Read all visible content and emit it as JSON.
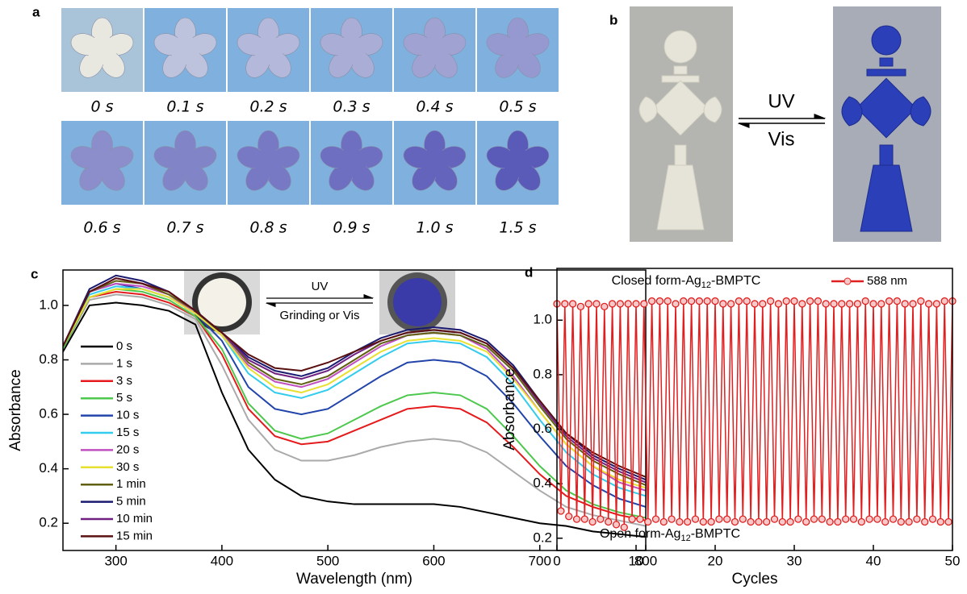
{
  "panels": {
    "a": {
      "label": "a",
      "times": [
        "0 s",
        "0.1 s",
        "0.2 s",
        "0.3 s",
        "0.4 s",
        "0.5 s",
        "0.6 s",
        "0.7 s",
        "0.8 s",
        "0.9 s",
        "1.0 s",
        "1.5 s"
      ]
    },
    "b": {
      "label": "b",
      "forward": "UV",
      "reverse": "Vis"
    }
  },
  "chart_data": [
    {
      "type": "line",
      "label": "c",
      "x_label": "Wavelength (nm)",
      "y_label": "Absorbance",
      "inset": {
        "forward": "UV",
        "reverse": "Grinding or Vis"
      },
      "x": [
        250,
        275,
        300,
        325,
        350,
        375,
        400,
        425,
        450,
        475,
        500,
        525,
        550,
        575,
        600,
        625,
        650,
        675,
        700,
        725,
        750,
        775,
        800
      ],
      "xlim": [
        250,
        800
      ],
      "xticks": [
        300,
        400,
        500,
        600,
        700,
        800
      ],
      "ylim": [
        0.1,
        1.13
      ],
      "yticks": [
        0.2,
        0.4,
        0.6,
        0.8,
        {
          "value": 1.0,
          "label": "1.0"
        }
      ],
      "grid": false,
      "legend": "left",
      "series": [
        {
          "name": "0 s",
          "color": "#000000",
          "values": [
            0.83,
            1.0,
            1.01,
            1.0,
            0.98,
            0.93,
            0.68,
            0.47,
            0.36,
            0.3,
            0.28,
            0.27,
            0.27,
            0.27,
            0.27,
            0.26,
            0.24,
            0.22,
            0.2,
            0.19,
            0.17,
            0.16,
            0.15
          ]
        },
        {
          "name": "1 s",
          "color": "#aaaaaa",
          "values": [
            0.84,
            1.02,
            1.04,
            1.03,
            1.0,
            0.95,
            0.78,
            0.58,
            0.47,
            0.43,
            0.43,
            0.45,
            0.48,
            0.5,
            0.51,
            0.5,
            0.46,
            0.39,
            0.32,
            0.26,
            0.23,
            0.21,
            0.19
          ]
        },
        {
          "name": "3 s",
          "color": "#e41a1c",
          "values": [
            0.84,
            1.03,
            1.05,
            1.04,
            1.01,
            0.96,
            0.82,
            0.62,
            0.52,
            0.49,
            0.5,
            0.54,
            0.58,
            0.62,
            0.63,
            0.62,
            0.57,
            0.48,
            0.38,
            0.3,
            0.26,
            0.23,
            0.21
          ]
        },
        {
          "name": "5 s",
          "color": "#4dc84d",
          "values": [
            0.84,
            1.03,
            1.06,
            1.05,
            1.02,
            0.96,
            0.84,
            0.64,
            0.54,
            0.51,
            0.53,
            0.58,
            0.63,
            0.67,
            0.68,
            0.67,
            0.62,
            0.52,
            0.41,
            0.32,
            0.27,
            0.24,
            0.22
          ]
        },
        {
          "name": "10 s",
          "color": "#2244aa",
          "values": [
            0.85,
            1.05,
            1.08,
            1.06,
            1.03,
            0.97,
            0.87,
            0.7,
            0.62,
            0.6,
            0.62,
            0.68,
            0.74,
            0.79,
            0.8,
            0.79,
            0.74,
            0.64,
            0.52,
            0.41,
            0.34,
            0.29,
            0.26
          ]
        },
        {
          "name": "15 s",
          "color": "#33ccee",
          "values": [
            0.85,
            1.04,
            1.07,
            1.06,
            1.03,
            0.97,
            0.89,
            0.75,
            0.68,
            0.66,
            0.69,
            0.75,
            0.81,
            0.86,
            0.87,
            0.86,
            0.81,
            0.71,
            0.58,
            0.46,
            0.38,
            0.33,
            0.3
          ]
        },
        {
          "name": "20 s",
          "color": "#c050c0",
          "values": [
            0.85,
            1.05,
            1.08,
            1.07,
            1.04,
            0.97,
            0.89,
            0.78,
            0.72,
            0.7,
            0.73,
            0.79,
            0.85,
            0.89,
            0.9,
            0.89,
            0.84,
            0.74,
            0.61,
            0.49,
            0.41,
            0.35,
            0.32
          ]
        },
        {
          "name": "30 s",
          "color": "#e8e030",
          "values": [
            0.85,
            1.03,
            1.06,
            1.06,
            1.03,
            0.97,
            0.89,
            0.77,
            0.7,
            0.68,
            0.71,
            0.77,
            0.83,
            0.87,
            0.88,
            0.87,
            0.83,
            0.73,
            0.61,
            0.49,
            0.41,
            0.36,
            0.33
          ]
        },
        {
          "name": "1 min",
          "color": "#606010",
          "values": [
            0.85,
            1.05,
            1.09,
            1.08,
            1.04,
            0.98,
            0.9,
            0.79,
            0.73,
            0.71,
            0.74,
            0.8,
            0.86,
            0.89,
            0.9,
            0.89,
            0.85,
            0.76,
            0.63,
            0.51,
            0.43,
            0.38,
            0.34
          ]
        },
        {
          "name": "5 min",
          "color": "#1a1a70",
          "values": [
            0.85,
            1.06,
            1.11,
            1.09,
            1.05,
            0.98,
            0.9,
            0.81,
            0.76,
            0.74,
            0.77,
            0.83,
            0.88,
            0.91,
            0.92,
            0.91,
            0.87,
            0.78,
            0.65,
            0.53,
            0.45,
            0.4,
            0.36
          ]
        },
        {
          "name": "10 min",
          "color": "#702080",
          "values": [
            0.85,
            1.05,
            1.1,
            1.08,
            1.05,
            0.98,
            0.9,
            0.8,
            0.75,
            0.73,
            0.76,
            0.82,
            0.87,
            0.9,
            0.91,
            0.9,
            0.86,
            0.77,
            0.64,
            0.52,
            0.44,
            0.39,
            0.35
          ]
        },
        {
          "name": "15 min",
          "color": "#5a1010",
          "values": [
            0.85,
            1.05,
            1.1,
            1.08,
            1.05,
            0.98,
            0.9,
            0.82,
            0.77,
            0.76,
            0.79,
            0.83,
            0.87,
            0.9,
            0.91,
            0.9,
            0.86,
            0.77,
            0.65,
            0.53,
            0.46,
            0.41,
            0.37
          ]
        }
      ]
    },
    {
      "type": "line",
      "label": "d",
      "x_label": "Cycles",
      "y_label": "Absorbance",
      "annotations": [
        "Closed form-Ag12-BMPTC",
        "Open form-Ag12-BMPTC"
      ],
      "x": [
        0,
        0.5,
        1,
        1.5,
        2,
        2.5,
        3,
        3.5,
        4,
        4.5,
        5,
        5.5,
        6,
        6.5,
        7,
        7.5,
        8,
        8.5,
        9,
        9.5,
        10,
        10.5,
        11,
        11.5,
        12,
        12.5,
        13,
        13.5,
        14,
        14.5,
        15,
        15.5,
        16,
        16.5,
        17,
        17.5,
        18,
        18.5,
        19,
        19.5,
        20,
        20.5,
        21,
        21.5,
        22,
        22.5,
        23,
        23.5,
        24,
        24.5,
        25,
        25.5,
        26,
        26.5,
        27,
        27.5,
        28,
        28.5,
        29,
        29.5,
        30,
        30.5,
        31,
        31.5,
        32,
        32.5,
        33,
        33.5,
        34,
        34.5,
        35,
        35.5,
        36,
        36.5,
        37,
        37.5,
        38,
        38.5,
        39,
        39.5,
        40,
        40.5,
        41,
        41.5,
        42,
        42.5,
        43,
        43.5,
        44,
        44.5,
        45,
        45.5,
        46,
        46.5,
        47,
        47.5,
        48,
        48.5,
        49,
        49.5,
        50
      ],
      "xlim": [
        0,
        50
      ],
      "xticks": [
        0,
        10,
        20,
        30,
        40,
        50
      ],
      "ylim": [
        0.155,
        1.19
      ],
      "yticks": [
        0.2,
        0.4,
        0.6,
        0.8,
        {
          "value": 1.0,
          "label": "1.0"
        }
      ],
      "grid": false,
      "legend": "upper right",
      "markers": true,
      "series": [
        {
          "name": "588 nm",
          "color": "#e02020",
          "values": [
            1.06,
            0.3,
            1.06,
            0.28,
            1.06,
            0.27,
            1.05,
            0.27,
            1.06,
            0.26,
            1.06,
            0.27,
            1.05,
            0.26,
            1.06,
            0.25,
            1.06,
            0.24,
            1.06,
            0.27,
            1.06,
            0.27,
            1.06,
            0.26,
            1.07,
            0.27,
            1.07,
            0.26,
            1.07,
            0.27,
            1.06,
            0.26,
            1.07,
            0.26,
            1.07,
            0.27,
            1.07,
            0.26,
            1.07,
            0.26,
            1.07,
            0.27,
            1.06,
            0.27,
            1.06,
            0.26,
            1.07,
            0.27,
            1.07,
            0.26,
            1.06,
            0.26,
            1.06,
            0.26,
            1.07,
            0.27,
            1.06,
            0.26,
            1.07,
            0.26,
            1.07,
            0.27,
            1.06,
            0.26,
            1.07,
            0.27,
            1.07,
            0.27,
            1.06,
            0.26,
            1.06,
            0.26,
            1.06,
            0.27,
            1.06,
            0.27,
            1.06,
            0.26,
            1.07,
            0.27,
            1.06,
            0.27,
            1.06,
            0.26,
            1.07,
            0.27,
            1.07,
            0.26,
            1.06,
            0.26,
            1.06,
            0.27,
            1.07,
            0.26,
            1.06,
            0.27,
            1.06,
            0.26,
            1.07,
            0.26,
            1.07
          ]
        }
      ]
    }
  ]
}
